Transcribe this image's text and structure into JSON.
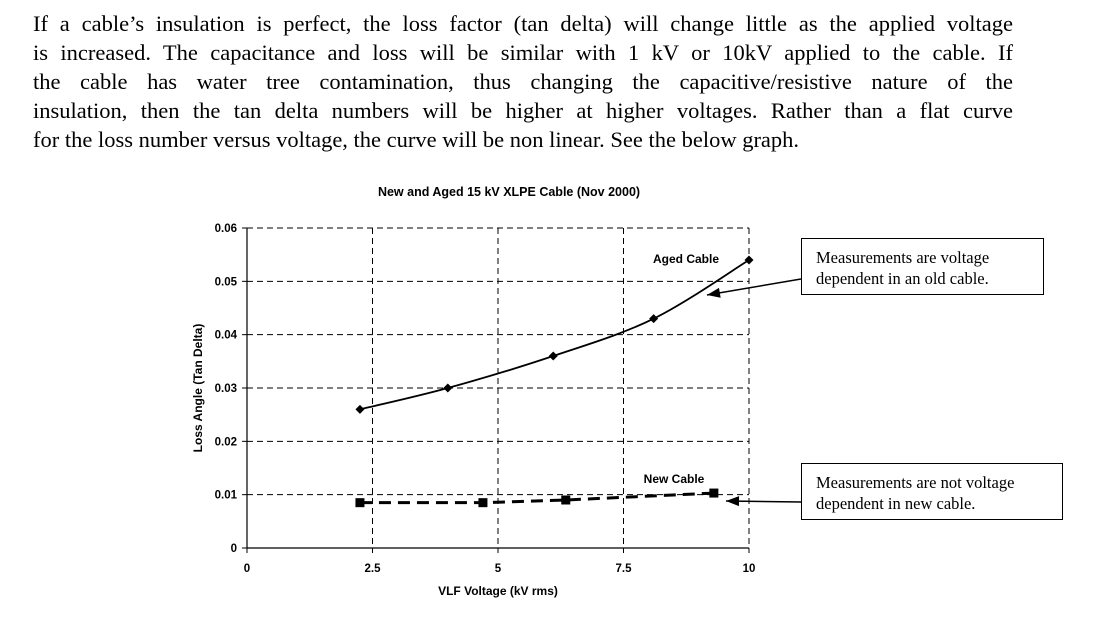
{
  "paragraph_lines": [
    "If a cable’s insulation is perfect, the loss factor (tan delta) will change little as the applied voltage",
    "is increased.  The capacitance and loss will be similar with 1 kV or 10kV applied to the cable.  If",
    "the cable has water tree contamination, thus changing the capacitive/resistive nature of the",
    "insulation, then the tan delta numbers will be higher at higher voltages.  Rather than a flat curve",
    "for the loss number versus voltage, the curve will be non linear. See the below graph."
  ],
  "chart_data": {
    "type": "line",
    "title": "New and Aged 15 kV XLPE Cable (Nov 2000)",
    "xlabel": "VLF Voltage (kV rms)",
    "ylabel": "Loss Angle (Tan Delta)",
    "xlim": [
      0,
      10
    ],
    "ylim": [
      0,
      0.06
    ],
    "x_ticks": [
      "0",
      "2.5",
      "5",
      "7.5",
      "10"
    ],
    "x_tick_values": [
      0,
      2.5,
      5,
      7.5,
      10
    ],
    "y_ticks": [
      "0",
      "0.01",
      "0.02",
      "0.03",
      "0.04",
      "0.05",
      "0.06"
    ],
    "y_tick_values": [
      0,
      0.01,
      0.02,
      0.03,
      0.04,
      0.05,
      0.06
    ],
    "grid": true,
    "series": [
      {
        "name": "Aged Cable",
        "marker": "diamond",
        "line_style": "solid",
        "color": "#000000",
        "x": [
          2.25,
          4.0,
          6.1,
          8.1,
          10.0
        ],
        "y": [
          0.026,
          0.03,
          0.036,
          0.043,
          0.054
        ]
      },
      {
        "name": "New Cable",
        "marker": "square",
        "line_style": "dashed",
        "color": "#000000",
        "x": [
          2.25,
          4.7,
          6.35,
          9.3
        ],
        "y": [
          0.0085,
          0.0085,
          0.009,
          0.0103
        ]
      }
    ]
  },
  "callouts": [
    {
      "text": "Measurements are voltage dependent in an old cable."
    },
    {
      "text": "Measurements are not voltage dependent in new cable."
    }
  ]
}
